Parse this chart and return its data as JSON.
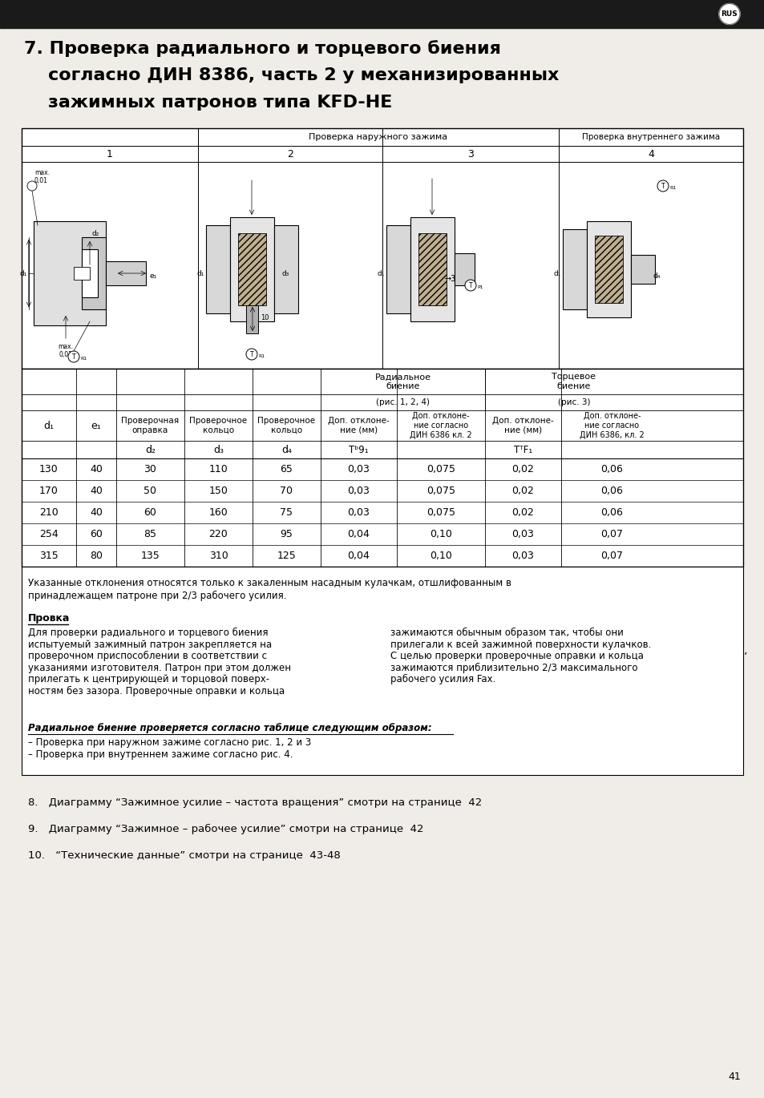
{
  "page_bg": "#f0ede8",
  "header_bg": "#1a1a1a",
  "title_line1": "7. Проверка радиального и торцевого биения",
  "title_line2": "согласно ДИН 8386, часть 2 у механизированных",
  "title_line3": "зажимных патронов типа KFD-HE",
  "hdr_naruzhno": "Проверка наружного зажима",
  "hdr_vnutrennee": "Проверка внутреннего зажима",
  "col_nums": [
    "1",
    "2",
    "3",
    "4"
  ],
  "th_d1": "d₁",
  "th_e1": "e₁",
  "th_provop": "Проверочная\nоправка",
  "th_provkol1": "Проверочное\nкольцо",
  "th_provkol2": "Проверочное\nкольцо",
  "th_d2": "d₂",
  "th_d3": "d₃",
  "th_d4": "d₄",
  "th_rad": "Радиальное\nбиение",
  "th_rad_ref": "(рис. 1, 2, 4)",
  "th_tor": "Торцевое\nбиение",
  "th_tor_ref": "(рис. 3)",
  "th_dop_mm": "Доп. отклоне-\nние (мм)",
  "th_dop_din": "Доп. отклоне-\nние согласно\nДИН 6386 кл. 2",
  "th_dop_mm2": "Доп. отклоне-\nние (мм)",
  "th_dop_din2": "Доп. отклоне-\nние согласно\nДИН 6386, кл. 2",
  "th_TR1": "TР₁",
  "th_TP1": "Tр₁",
  "table_data": [
    [
      130,
      40,
      30,
      110,
      65,
      "0,03",
      "0,075",
      "0,02",
      "0,06"
    ],
    [
      170,
      40,
      50,
      150,
      70,
      "0,03",
      "0,075",
      "0,02",
      "0,06"
    ],
    [
      210,
      40,
      60,
      160,
      75,
      "0,03",
      "0,075",
      "0,02",
      "0,06"
    ],
    [
      254,
      60,
      85,
      220,
      95,
      "0,04",
      "0,10",
      "0,03",
      "0,07"
    ],
    [
      315,
      80,
      135,
      310,
      125,
      "0,04",
      "0,10",
      "0,03",
      "0,07"
    ]
  ],
  "note_line1": "Указанные отклонения относятся только к закаленным насадным кулачкам, отшлифованным в",
  "note_line2": "принадлежащем патроне при 2/3 рабочего усилия.",
  "prov_title": "Провка",
  "prov_col1_lines": [
    "Для проверки радиального и торцевого биения",
    "испытуемый зажимный патрон закрепляется на",
    "проверочном приспособлении в соответствии с",
    "указаниями изготовителя. Патрон при этом должен",
    "прилегать к центрирующей и торцовой поверх-",
    "ностям без зазора. Проверочные оправки и кольца"
  ],
  "prov_col2_lines": [
    "зажимаются обычным образом так, чтобы они",
    "прилегали к всей зажимной поверхности кулачков.",
    "С целью проверки проверочные оправки и кольца",
    "зажимаются приблизительно 2/3 максимального",
    "рабочего усилия Fax."
  ],
  "rad_title": "Радиальное биение проверяется согласно таблице следующим образом:",
  "rad_sub1": "– Проверка при наружном зажиме согласно рис. 1, 2 и 3",
  "rad_sub2": "– Проверка при внутреннем зажиме согласно рис. 4.",
  "item8": "8. Диаграмму “Зажимное усилие – частота вращения” смотри на странице  42",
  "item9": "9. Диаграмму “Зажимное – рабочее усилие” смотри на странице  42",
  "item10": "10. “Технические данные” смотри на странице  43-48",
  "page_num": "41"
}
